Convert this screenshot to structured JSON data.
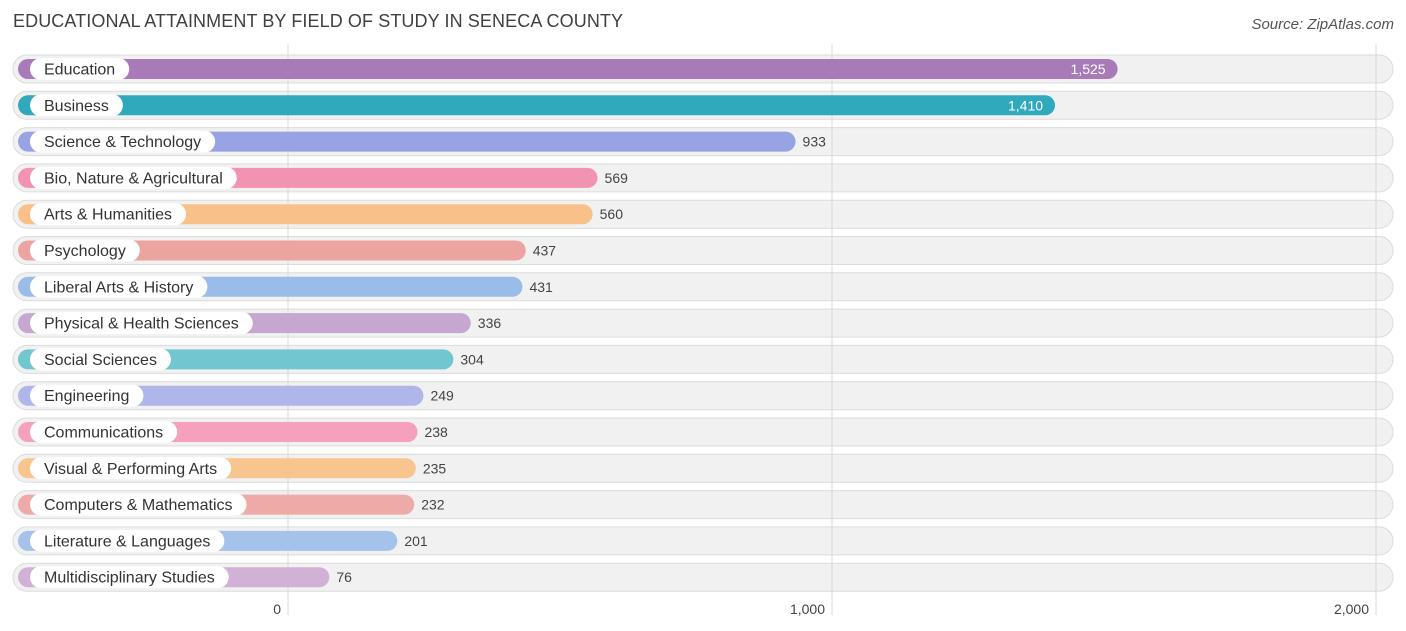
{
  "chart_data": {
    "type": "bar",
    "orientation": "horizontal",
    "title": "EDUCATIONAL ATTAINMENT BY FIELD OF STUDY IN SENECA COUNTY",
    "source": "Source: ZipAtlas.com",
    "xlim": [
      0,
      2000
    ],
    "ticks": [
      {
        "value": 0,
        "label": "0"
      },
      {
        "value": 1000,
        "label": "1,000"
      },
      {
        "value": 2000,
        "label": "2,000"
      }
    ],
    "grid": true,
    "categories": [
      "Education",
      "Business",
      "Science & Technology",
      "Bio, Nature & Agricultural",
      "Arts & Humanities",
      "Psychology",
      "Liberal Arts & History",
      "Physical & Health Sciences",
      "Social Sciences",
      "Engineering",
      "Communications",
      "Visual & Performing Arts",
      "Computers & Mathematics",
      "Literature & Languages",
      "Multidisciplinary Studies"
    ],
    "values": [
      1525,
      1410,
      933,
      569,
      560,
      437,
      431,
      336,
      304,
      249,
      238,
      235,
      232,
      201,
      76
    ],
    "value_labels": [
      "1,525",
      "1,410",
      "933",
      "569",
      "560",
      "437",
      "431",
      "336",
      "304",
      "249",
      "238",
      "235",
      "232",
      "201",
      "76"
    ],
    "colors": [
      "#a87bb8",
      "#2fa9bb",
      "#98a3e3",
      "#f393b2",
      "#f9c189",
      "#eca4a1",
      "#99bde8",
      "#c5a7cf",
      "#72c6cf",
      "#b0b5ea",
      "#f5a0bd",
      "#f9c58f",
      "#eeaaa7",
      "#a5c3ea",
      "#d1b1d6"
    ]
  }
}
